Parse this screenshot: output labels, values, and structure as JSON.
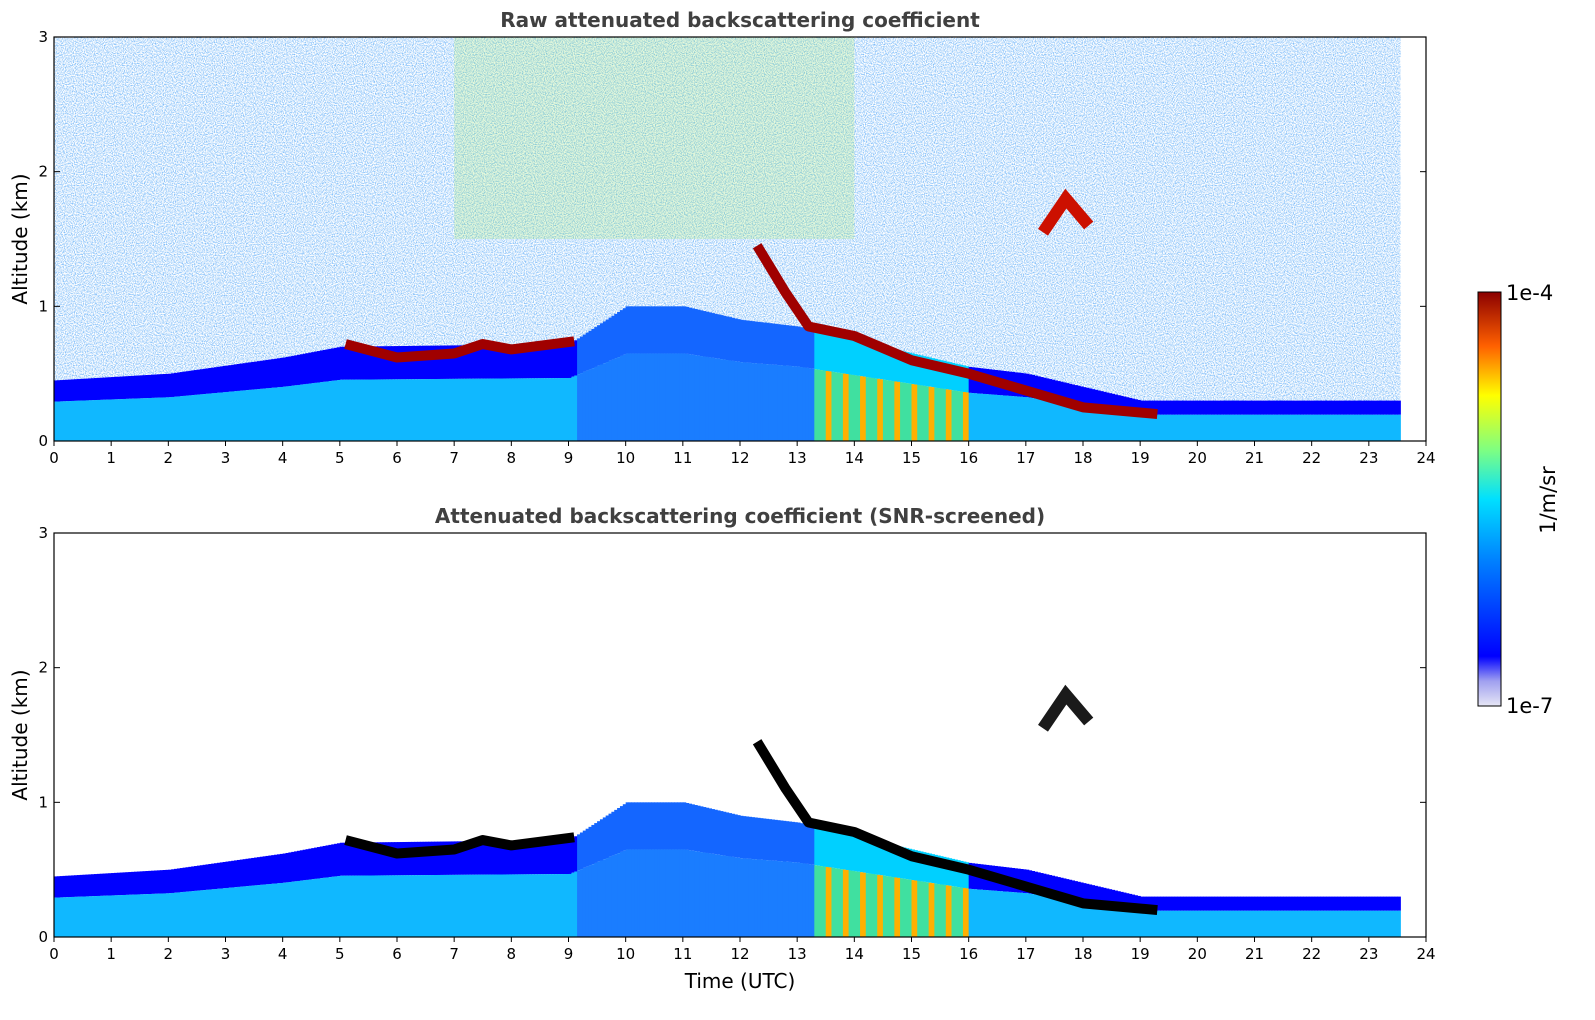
{
  "figure": {
    "xlabel": "Time (UTC)",
    "colorbar": {
      "label": "1/m/sr",
      "max_label": "1e-4",
      "min_label": "1e-7",
      "scale": "log",
      "range": [
        1e-07,
        0.0001
      ]
    }
  },
  "chart_data": [
    {
      "type": "heatmap",
      "title": "Raw attenuated backscattering coefficient",
      "xlabel": "",
      "ylabel": "Altitude (km)",
      "xlim": [
        0,
        24
      ],
      "ylim": [
        0,
        3
      ],
      "xticks": [
        "0",
        "1",
        "2",
        "3",
        "4",
        "5",
        "6",
        "7",
        "8",
        "9",
        "10",
        "11",
        "12",
        "13",
        "14",
        "15",
        "16",
        "17",
        "18",
        "19",
        "20",
        "21",
        "22",
        "23",
        "24"
      ],
      "yticks": [
        "0",
        "1",
        "2",
        "3"
      ],
      "data_end_hour": 23.55,
      "screened": false,
      "features": {
        "boundary_layer_top_km": [
          [
            0,
            0.45
          ],
          [
            2,
            0.5
          ],
          [
            4,
            0.62
          ],
          [
            5,
            0.7
          ],
          [
            9,
            0.72
          ],
          [
            10,
            1.0
          ],
          [
            11,
            1.0
          ],
          [
            12,
            0.9
          ],
          [
            13,
            0.85
          ],
          [
            14,
            0.75
          ],
          [
            16,
            0.55
          ],
          [
            17,
            0.5
          ],
          [
            19,
            0.3
          ],
          [
            20,
            0.3
          ],
          [
            23.5,
            0.3
          ]
        ],
        "cloud_layer_km": [
          [
            5.1,
            0.72
          ],
          [
            6,
            0.62
          ],
          [
            7,
            0.65
          ],
          [
            7.5,
            0.72
          ],
          [
            8,
            0.68
          ],
          [
            9.1,
            0.74
          ],
          [
            12.3,
            1.45
          ],
          [
            12.8,
            1.1
          ],
          [
            13.2,
            0.85
          ],
          [
            14,
            0.78
          ],
          [
            15,
            0.6
          ],
          [
            16,
            0.5
          ],
          [
            16.8,
            0.4
          ],
          [
            18,
            0.25
          ],
          [
            19.3,
            0.2
          ]
        ],
        "elevated_cloud_km": [
          [
            17.3,
            1.55
          ],
          [
            17.7,
            1.8
          ],
          [
            18.1,
            1.6
          ]
        ]
      }
    },
    {
      "type": "heatmap",
      "title": "Attenuated backscattering coefficient (SNR-screened)",
      "xlabel": "Time (UTC)",
      "ylabel": "Altitude (km)",
      "xlim": [
        0,
        24
      ],
      "ylim": [
        0,
        3
      ],
      "xticks": [
        "0",
        "1",
        "2",
        "3",
        "4",
        "5",
        "6",
        "7",
        "8",
        "9",
        "10",
        "11",
        "12",
        "13",
        "14",
        "15",
        "16",
        "17",
        "18",
        "19",
        "20",
        "21",
        "22",
        "23",
        "24"
      ],
      "yticks": [
        "0",
        "1",
        "2",
        "3"
      ],
      "data_end_hour": 23.55,
      "screened": true
    }
  ]
}
